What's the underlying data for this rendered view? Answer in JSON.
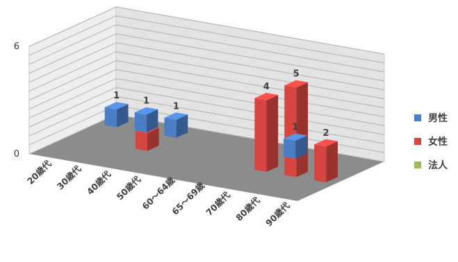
{
  "chart_data": {
    "type": "bar",
    "categories": [
      "20歳代",
      "30歳代",
      "40歳代",
      "50歳代",
      "60～64歳",
      "65～69歳",
      "70歳代",
      "80歳代",
      "90歳代"
    ],
    "series": [
      {
        "name": "男性",
        "values": [
          1,
          1,
          1,
          0,
          0,
          0,
          1,
          0,
          0
        ],
        "color": "#4a7fc5"
      },
      {
        "name": "女性",
        "values": [
          0,
          0,
          1,
          0,
          0,
          0,
          4,
          5,
          2
        ],
        "color": "#d64540"
      },
      {
        "name": "法人",
        "values": [
          0,
          0,
          0,
          0,
          0,
          0,
          0,
          0,
          0
        ],
        "color": "#9bbb59"
      }
    ],
    "y_ticks": [
      "0",
      "6"
    ],
    "ylim": [
      0,
      6
    ],
    "grid": true,
    "legend_position": "right",
    "view": "3d"
  }
}
